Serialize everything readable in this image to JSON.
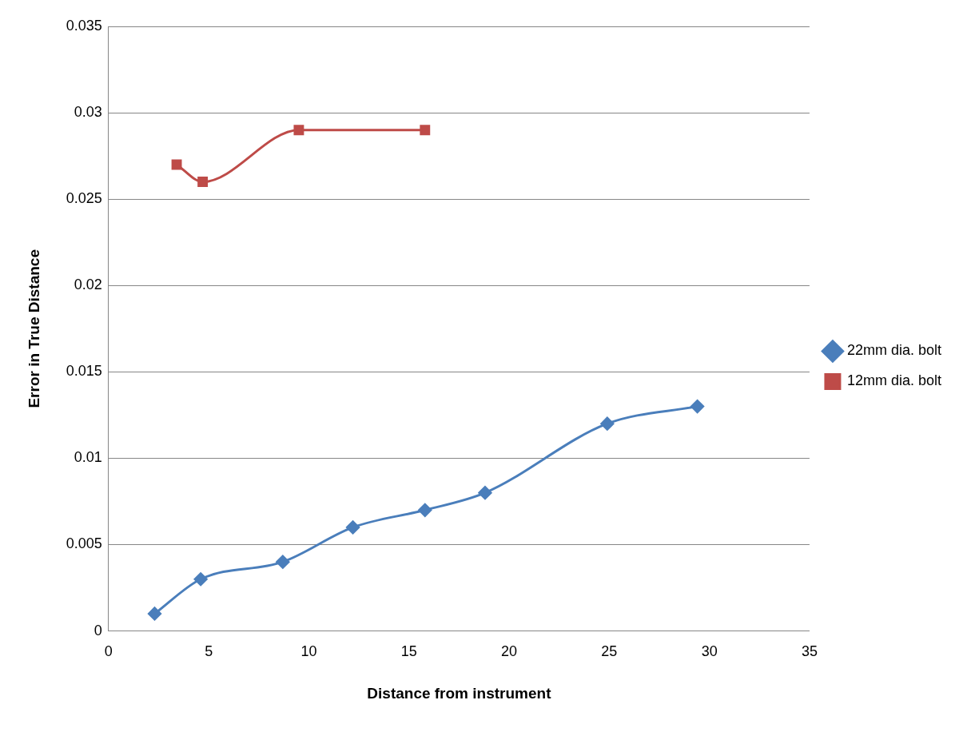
{
  "chart_data": {
    "type": "line",
    "xlabel": "Distance from instrument",
    "ylabel": "Error in True Distance",
    "xlim": [
      0,
      35
    ],
    "xticks": [
      0,
      5,
      10,
      15,
      20,
      25,
      30,
      35
    ],
    "ylim": [
      0,
      0.035
    ],
    "yticks": [
      0,
      0.005,
      0.01,
      0.015,
      0.02,
      0.025,
      0.03,
      0.035
    ],
    "grid": "y",
    "legend": "right",
    "series": [
      {
        "name": "22mm dia. bolt",
        "color": "#4a7ebb",
        "marker": "diamond",
        "x": [
          2.3,
          4.6,
          8.7,
          12.2,
          15.8,
          18.8,
          24.9,
          29.4
        ],
        "values": [
          0.001,
          0.003,
          0.004,
          0.006,
          0.007,
          0.008,
          0.012,
          0.013
        ]
      },
      {
        "name": "12mm dia. bolt",
        "color": "#be4b48",
        "marker": "square",
        "x": [
          3.4,
          4.7,
          9.5,
          15.8
        ],
        "values": [
          0.027,
          0.026,
          0.029,
          0.029
        ]
      }
    ]
  }
}
